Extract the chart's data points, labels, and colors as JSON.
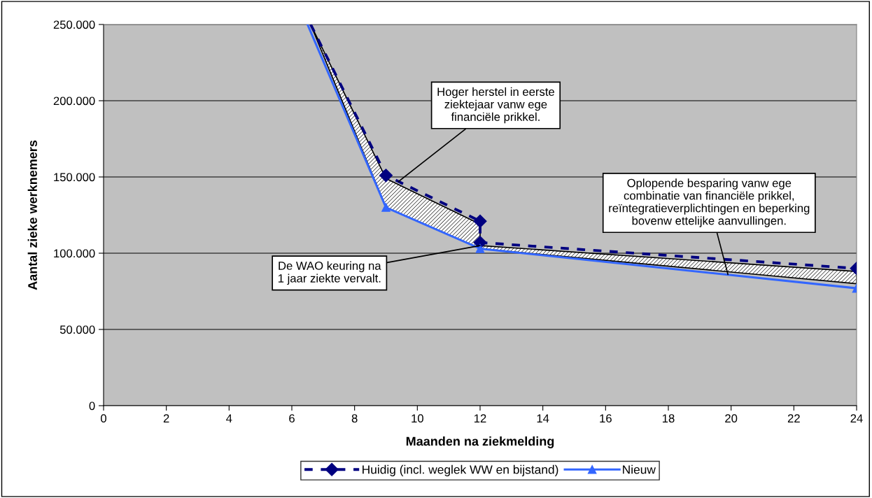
{
  "chart_data": {
    "type": "line",
    "xlabel": "Maanden na ziekmelding",
    "ylabel": "Aantal zieke werknemers",
    "xlim": [
      0,
      24
    ],
    "xticks": [
      0,
      2,
      4,
      6,
      8,
      10,
      12,
      14,
      16,
      18,
      20,
      22,
      24
    ],
    "ylim": [
      0,
      250000
    ],
    "yticks": [
      {
        "value": 0,
        "label": "0"
      },
      {
        "value": 50000,
        "label": "50.000"
      },
      {
        "value": 100000,
        "label": "100.000"
      },
      {
        "value": 150000,
        "label": "150.000"
      },
      {
        "value": 200000,
        "label": "200.000"
      },
      {
        "value": 250000,
        "label": "250.000"
      }
    ],
    "grid": "y",
    "legend": "bottom",
    "series": [
      {
        "name": "Huidig (incl. weglek WW en bijstand)",
        "color": "#000080",
        "marker": "diamond",
        "line_style": "dashed",
        "x": [
          6.6,
          9,
          12,
          12,
          24
        ],
        "values": [
          250000,
          151000,
          121000,
          107000,
          90000
        ],
        "lower": [
          250000,
          130000,
          103000,
          103000,
          80000
        ],
        "upper": [
          250000,
          149000,
          119000,
          105000,
          88000
        ]
      },
      {
        "name": "Nieuw",
        "color": "#3366ff",
        "marker": "triangle",
        "line_style": "solid",
        "x": [
          6.5,
          9,
          12,
          24
        ],
        "values": [
          250000,
          130000,
          103000,
          77000
        ]
      }
    ],
    "annotations": [
      {
        "text": "Hoger herstel in eerste\nziektejaar vanw ege\nfinanciële prikkel.",
        "x": 9.4,
        "y": 147000
      },
      {
        "text": "De WAO keuring na\n1 jaar ziekte vervalt.",
        "x": 12,
        "y": 105000
      },
      {
        "text": "Oplopende besparing vanw ege\ncombinatie van financiële prikkel,\nreïntegratieverplichtingen en beperking\nbovenw ettelijke aanvullingen.",
        "x": 19.9,
        "y": 86000
      }
    ]
  }
}
